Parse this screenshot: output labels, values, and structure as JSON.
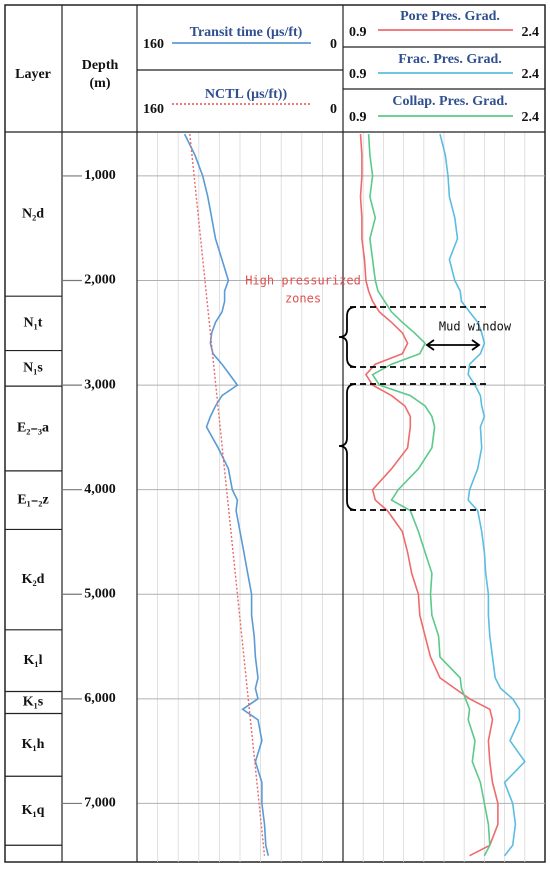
{
  "chart_data": {
    "type": "line",
    "layer_header": "Layer",
    "depth_header": [
      "Depth",
      "(m)"
    ],
    "ylim": [
      580,
      7560
    ],
    "yticks": [
      {
        "value": 1000,
        "label": "1,000"
      },
      {
        "value": 2000,
        "label": "2,000"
      },
      {
        "value": 3000,
        "label": "3,000"
      },
      {
        "value": 4000,
        "label": "4,000"
      },
      {
        "value": 5000,
        "label": "5,000"
      },
      {
        "value": 6000,
        "label": "6,000"
      },
      {
        "value": 7000,
        "label": "7,000"
      }
    ],
    "grid": true,
    "layers": [
      {
        "name": "N₂d",
        "top": 580,
        "bottom": 2150
      },
      {
        "name": "N₁t",
        "top": 2150,
        "bottom": 2670
      },
      {
        "name": "N₁s",
        "top": 2670,
        "bottom": 3010
      },
      {
        "name": "E₂₋₃a",
        "top": 3010,
        "bottom": 3820
      },
      {
        "name": "E₁₋₂z",
        "top": 3820,
        "bottom": 4380
      },
      {
        "name": "K₂d",
        "top": 4380,
        "bottom": 5340
      },
      {
        "name": "K₁l",
        "top": 5340,
        "bottom": 5930
      },
      {
        "name": "K₁s",
        "top": 5930,
        "bottom": 6140
      },
      {
        "name": "K₁h",
        "top": 6140,
        "bottom": 6740
      },
      {
        "name": "K₁q",
        "top": 6740,
        "bottom": 7400
      }
    ],
    "depths": [
      600,
      800,
      1000,
      1200,
      1400,
      1600,
      1800,
      2000,
      2100,
      2200,
      2300,
      2400,
      2500,
      2600,
      2700,
      2800,
      2900,
      3000,
      3100,
      3200,
      3300,
      3400,
      3600,
      3800,
      4000,
      4100,
      4200,
      4400,
      4600,
      4800,
      5000,
      5200,
      5400,
      5600,
      5800,
      5900,
      6000,
      6100,
      6200,
      6400,
      6600,
      6800,
      7000,
      7200,
      7400,
      7500
    ],
    "tracks": [
      {
        "xlim": [
          160,
          0
        ],
        "series": [
          {
            "name": "Transit time (μs/ft)",
            "color": "#5b9bd5",
            "dash": false,
            "xlim": [
              160,
              0
            ],
            "values": [
              123,
              115,
              109,
              105,
              102,
              99,
              94,
              89,
              92,
              92,
              94,
              99,
              102,
              103,
              101,
              94,
              88,
              82,
              94,
              99,
              103,
              106,
              97,
              89,
              86,
              82,
              83,
              80,
              77,
              74,
              71,
              71,
              69,
              68,
              66,
              68,
              66,
              78,
              66,
              63,
              68,
              63,
              63,
              61,
              60,
              58
            ]
          },
          {
            "name": "NCTL (μs/ft))",
            "color": "#e86a6a",
            "dash": true,
            "xlim": [
              160,
              0
            ],
            "depths": [
              600,
              7500
            ],
            "values": [
              119,
              61
            ]
          }
        ]
      },
      {
        "xlim": [
          0.9,
          2.4
        ],
        "series": [
          {
            "name": "Pore Pres. Grad.",
            "color": "#ee6b6b",
            "dash": false,
            "xlim": [
              0.9,
              2.4
            ],
            "values": [
              1.03,
              1.04,
              1.04,
              1.03,
              1.04,
              1.04,
              1.06,
              1.07,
              1.09,
              1.12,
              1.17,
              1.26,
              1.34,
              1.38,
              1.34,
              1.14,
              1.07,
              1.12,
              1.26,
              1.36,
              1.4,
              1.4,
              1.38,
              1.26,
              1.12,
              1.14,
              1.23,
              1.34,
              1.38,
              1.41,
              1.46,
              1.47,
              1.51,
              1.55,
              1.62,
              1.73,
              1.84,
              1.99,
              2.01,
              1.98,
              1.99,
              2.01,
              2.05,
              2.05,
              1.99,
              1.84
            ]
          },
          {
            "name": "Frac. Pres. Grad.",
            "color": "#5bbde0",
            "dash": false,
            "xlim": [
              0.9,
              2.4
            ],
            "values": [
              1.62,
              1.66,
              1.68,
              1.69,
              1.73,
              1.75,
              1.69,
              1.73,
              1.77,
              1.78,
              1.84,
              1.9,
              1.93,
              1.95,
              1.92,
              1.84,
              1.83,
              1.88,
              1.92,
              1.93,
              1.95,
              1.92,
              1.93,
              1.9,
              1.84,
              1.83,
              1.9,
              1.93,
              1.95,
              1.96,
              1.98,
              1.98,
              1.99,
              2.01,
              2.03,
              2.07,
              2.16,
              2.21,
              2.21,
              2.14,
              2.25,
              2.1,
              2.16,
              2.18,
              2.16,
              2.1
            ]
          },
          {
            "name": "Collap. Pres. Grad.",
            "color": "#5cc98a",
            "dash": false,
            "xlim": [
              0.9,
              2.4
            ],
            "values": [
              1.09,
              1.1,
              1.12,
              1.1,
              1.14,
              1.1,
              1.12,
              1.14,
              1.16,
              1.21,
              1.26,
              1.34,
              1.43,
              1.51,
              1.47,
              1.26,
              1.12,
              1.17,
              1.4,
              1.51,
              1.56,
              1.58,
              1.56,
              1.46,
              1.31,
              1.26,
              1.4,
              1.46,
              1.51,
              1.56,
              1.55,
              1.56,
              1.61,
              1.62,
              1.77,
              1.78,
              1.81,
              1.84,
              1.83,
              1.88,
              1.86,
              1.92,
              1.95,
              1.98,
              1.99,
              1.95
            ]
          }
        ]
      }
    ],
    "annotations": {
      "high_pressure": [
        "High pressurized",
        "zones"
      ],
      "mud_window": "Mud window"
    }
  }
}
